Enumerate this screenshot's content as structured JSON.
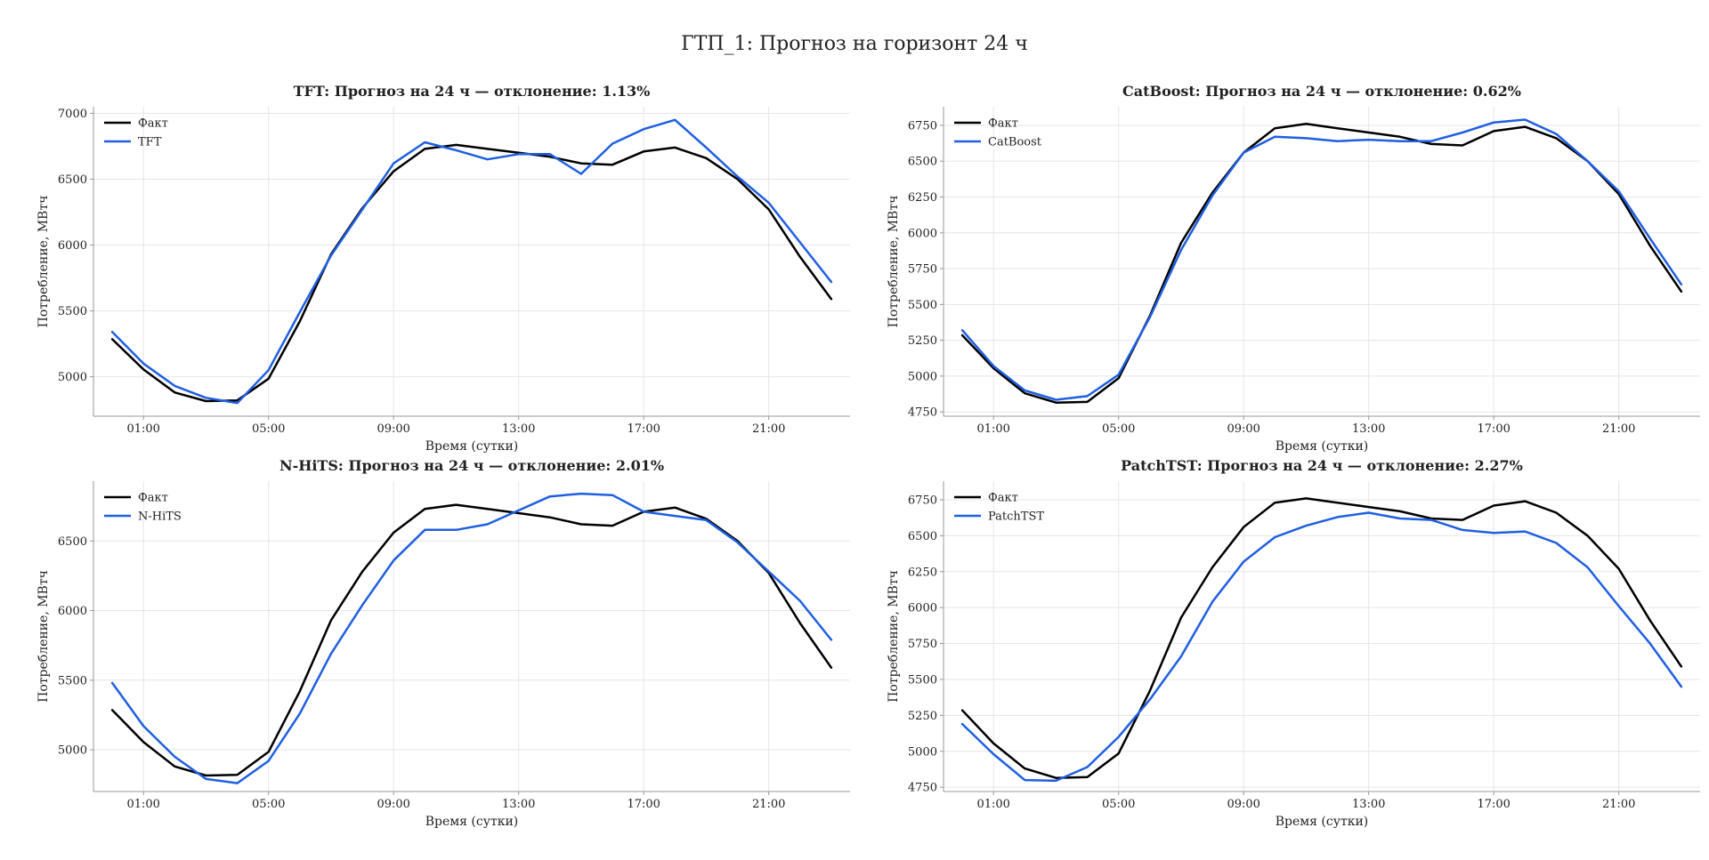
{
  "figure": {
    "title": "ГТП_1: Прогноз на горизонт 24 ч"
  },
  "colors": {
    "fact": "#000000",
    "forecast": "#1f5fe0",
    "grid": "#e6e6e6",
    "spine": "#999999"
  },
  "chart_data": [
    {
      "type": "line",
      "title": "TFT: Прогноз на 24 ч — отклонение: 1.13%",
      "xlabel": "Время (сутки)",
      "ylabel": "Потребление, МВтч",
      "xlim": [
        0,
        23
      ],
      "ylim": [
        4700,
        7050
      ],
      "yticks": [
        5000,
        5500,
        6000,
        6500,
        7000
      ],
      "xticks": [
        1,
        5,
        9,
        13,
        17,
        21
      ],
      "xticklabels": [
        "01:00",
        "05:00",
        "09:00",
        "13:00",
        "17:00",
        "21:00"
      ],
      "grid": true,
      "legend_position": "top-left",
      "x": [
        0,
        1,
        2,
        3,
        4,
        5,
        6,
        7,
        8,
        9,
        10,
        11,
        12,
        13,
        14,
        15,
        16,
        17,
        18,
        19,
        20,
        21,
        22,
        23
      ],
      "series": [
        {
          "name": "Факт",
          "values": [
            5285,
            5055,
            4880,
            4815,
            4820,
            4985,
            5420,
            5930,
            6280,
            6560,
            6730,
            6760,
            6730,
            6700,
            6670,
            6620,
            6610,
            6710,
            6740,
            6660,
            6500,
            6270,
            5910,
            5590
          ]
        },
        {
          "name": "TFT",
          "values": [
            5340,
            5100,
            4930,
            4840,
            4800,
            5050,
            5490,
            5920,
            6270,
            6620,
            6780,
            6720,
            6650,
            6690,
            6690,
            6540,
            6770,
            6880,
            6950,
            6740,
            6520,
            6320,
            6020,
            5720
          ]
        }
      ]
    },
    {
      "type": "line",
      "title": "CatBoost: Прогноз на 24 ч — отклонение: 0.62%",
      "xlabel": "Время (сутки)",
      "ylabel": "Потребление, МВтч",
      "xlim": [
        0,
        23
      ],
      "ylim": [
        4720,
        6880
      ],
      "yticks": [
        4750,
        5000,
        5250,
        5500,
        5750,
        6000,
        6250,
        6500,
        6750
      ],
      "xticks": [
        1,
        5,
        9,
        13,
        17,
        21
      ],
      "xticklabels": [
        "01:00",
        "05:00",
        "09:00",
        "13:00",
        "17:00",
        "21:00"
      ],
      "grid": true,
      "legend_position": "top-left",
      "x": [
        0,
        1,
        2,
        3,
        4,
        5,
        6,
        7,
        8,
        9,
        10,
        11,
        12,
        13,
        14,
        15,
        16,
        17,
        18,
        19,
        20,
        21,
        22,
        23
      ],
      "series": [
        {
          "name": "Факт",
          "values": [
            5285,
            5055,
            4880,
            4815,
            4820,
            4985,
            5420,
            5930,
            6280,
            6560,
            6730,
            6760,
            6730,
            6700,
            6670,
            6620,
            6610,
            6710,
            6740,
            6660,
            6500,
            6270,
            5910,
            5590
          ]
        },
        {
          "name": "CatBoost",
          "values": [
            5320,
            5070,
            4900,
            4835,
            4860,
            5010,
            5410,
            5880,
            6260,
            6560,
            6670,
            6660,
            6640,
            6650,
            6640,
            6640,
            6700,
            6770,
            6790,
            6690,
            6500,
            6290,
            5960,
            5640
          ]
        }
      ]
    },
    {
      "type": "line",
      "title": "N-HiTS: Прогноз на 24 ч — отклонение: 2.01%",
      "xlabel": "Время (сутки)",
      "ylabel": "Потребление, МВтч",
      "xlim": [
        0,
        23
      ],
      "ylim": [
        4700,
        6930
      ],
      "yticks": [
        5000,
        5500,
        6000,
        6500
      ],
      "xticks": [
        1,
        5,
        9,
        13,
        17,
        21
      ],
      "xticklabels": [
        "01:00",
        "05:00",
        "09:00",
        "13:00",
        "17:00",
        "21:00"
      ],
      "grid": true,
      "legend_position": "top-left",
      "x": [
        0,
        1,
        2,
        3,
        4,
        5,
        6,
        7,
        8,
        9,
        10,
        11,
        12,
        13,
        14,
        15,
        16,
        17,
        18,
        19,
        20,
        21,
        22,
        23
      ],
      "series": [
        {
          "name": "Факт",
          "values": [
            5285,
            5055,
            4880,
            4815,
            4820,
            4985,
            5420,
            5930,
            6280,
            6560,
            6730,
            6760,
            6730,
            6700,
            6670,
            6620,
            6610,
            6710,
            6740,
            6660,
            6500,
            6270,
            5910,
            5590
          ]
        },
        {
          "name": "N-HiTS",
          "values": [
            5480,
            5170,
            4950,
            4790,
            4760,
            4920,
            5260,
            5690,
            6040,
            6360,
            6580,
            6580,
            6620,
            6720,
            6820,
            6840,
            6830,
            6710,
            6680,
            6650,
            6490,
            6280,
            6070,
            5790
          ]
        }
      ]
    },
    {
      "type": "line",
      "title": "PatchTST: Прогноз на 24 ч — отклонение: 2.27%",
      "xlabel": "Время (сутки)",
      "ylabel": "Потребление, МВтч",
      "xlim": [
        0,
        23
      ],
      "ylim": [
        4720,
        6880
      ],
      "yticks": [
        4750,
        5000,
        5250,
        5500,
        5750,
        6000,
        6250,
        6500,
        6750
      ],
      "xticks": [
        1,
        5,
        9,
        13,
        17,
        21
      ],
      "xticklabels": [
        "01:00",
        "05:00",
        "09:00",
        "13:00",
        "17:00",
        "21:00"
      ],
      "grid": true,
      "legend_position": "top-left",
      "x": [
        0,
        1,
        2,
        3,
        4,
        5,
        6,
        7,
        8,
        9,
        10,
        11,
        12,
        13,
        14,
        15,
        16,
        17,
        18,
        19,
        20,
        21,
        22,
        23
      ],
      "series": [
        {
          "name": "Факт",
          "values": [
            5285,
            5055,
            4880,
            4815,
            4820,
            4985,
            5420,
            5930,
            6280,
            6560,
            6730,
            6760,
            6730,
            6700,
            6670,
            6620,
            6610,
            6710,
            6740,
            6660,
            6500,
            6270,
            5910,
            5590
          ]
        },
        {
          "name": "PatchTST",
          "values": [
            5190,
            4980,
            4800,
            4795,
            4890,
            5100,
            5360,
            5660,
            6040,
            6320,
            6490,
            6570,
            6630,
            6660,
            6620,
            6610,
            6540,
            6520,
            6530,
            6450,
            6280,
            6010,
            5750,
            5450
          ]
        }
      ]
    }
  ]
}
